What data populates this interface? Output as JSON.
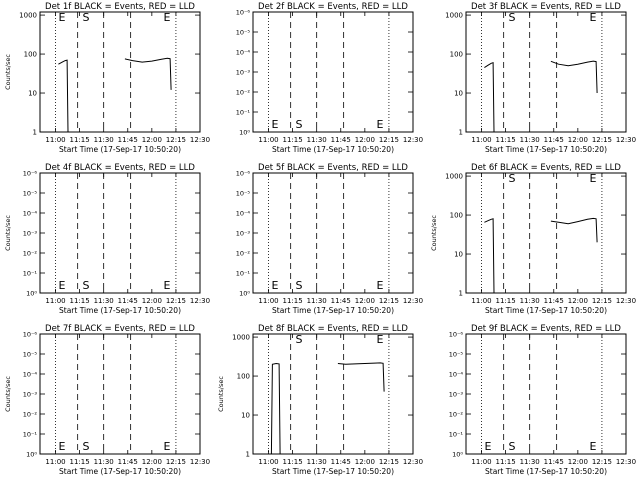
{
  "chart_data": [
    {
      "type": "line",
      "title": "Det 1f BLACK = Events, RED = LLD",
      "ylabel": "Counts/sec",
      "xlabel": "Start Time (17-Sep-17 10:50:20)",
      "x_ticks": [
        "11:00",
        "11:15",
        "11:30",
        "11:45",
        "12:00",
        "12:15",
        "12:30"
      ],
      "y_ticks": [
        "1",
        "10",
        "100",
        "1000"
      ],
      "ylog": true,
      "ylim": [
        1,
        1200
      ],
      "markers": [
        "E",
        "S",
        "E"
      ],
      "series": [
        {
          "values": [
            [
              11.03,
              55
            ],
            [
              11.07,
              62
            ],
            [
              11.1,
              68
            ],
            [
              11.12,
              70
            ],
            [
              11.13,
              1
            ]
          ]
        },
        {
          "values": [
            [
              11.72,
              75
            ],
            [
              11.8,
              68
            ],
            [
              11.9,
              62
            ],
            [
              12.0,
              66
            ],
            [
              12.1,
              74
            ],
            [
              12.16,
              78
            ],
            [
              12.19,
              76
            ],
            [
              12.2,
              12
            ]
          ]
        }
      ]
    },
    {
      "type": "line",
      "title": "Det 2f BLACK = Events, RED = LLD",
      "ylabel": "",
      "xlabel": "Start Time (17-Sep-17 10:50:20)",
      "x_ticks": [
        "11:00",
        "11:15",
        "11:30",
        "11:45",
        "12:00",
        "12:15",
        "12:30"
      ],
      "y_ticks": [
        "10⁰",
        "10⁻¹",
        "10⁻²",
        "10⁻³",
        "10⁻⁴",
        "10⁻⁵",
        "10⁻⁶"
      ],
      "ylog": false,
      "markers": [
        "E",
        "S",
        "E"
      ],
      "series": []
    },
    {
      "type": "line",
      "title": "Det 3f BLACK = Events, RED = LLD",
      "ylabel": "",
      "xlabel": "Start Time (17-Sep-17 10:50:20)",
      "x_ticks": [
        "11:00",
        "11:15",
        "11:30",
        "11:45",
        "12:00",
        "12:15",
        "12:30"
      ],
      "y_ticks": [
        "1",
        "10",
        "100",
        "1000"
      ],
      "ylog": true,
      "ylim": [
        1,
        1200
      ],
      "markers": [
        "S",
        "E"
      ],
      "series": [
        {
          "values": [
            [
              11.03,
              45
            ],
            [
              11.07,
              52
            ],
            [
              11.1,
              58
            ],
            [
              11.12,
              60
            ],
            [
              11.13,
              1
            ]
          ]
        },
        {
          "values": [
            [
              11.72,
              65
            ],
            [
              11.8,
              55
            ],
            [
              11.9,
              50
            ],
            [
              12.0,
              55
            ],
            [
              12.1,
              62
            ],
            [
              12.16,
              66
            ],
            [
              12.19,
              64
            ],
            [
              12.2,
              10
            ]
          ]
        }
      ]
    },
    {
      "type": "line",
      "title": "Det 4f BLACK = Events, RED = LLD",
      "ylabel": "Counts/sec",
      "xlabel": "Start Time (17-Sep-17 10:50:20)",
      "x_ticks": [
        "11:00",
        "11:15",
        "11:30",
        "11:45",
        "12:00",
        "12:15",
        "12:30"
      ],
      "y_ticks": [
        "10⁰",
        "10⁻¹",
        "10⁻²",
        "10⁻³",
        "10⁻⁴",
        "10⁻⁵",
        "10⁻⁶"
      ],
      "ylog": false,
      "markers": [
        "E",
        "S",
        "E"
      ],
      "series": []
    },
    {
      "type": "line",
      "title": "Det 5f BLACK = Events, RED = LLD",
      "ylabel": "",
      "xlabel": "Start Time (17-Sep-17 10:50:20)",
      "x_ticks": [
        "11:00",
        "11:15",
        "11:30",
        "11:45",
        "12:00",
        "12:15",
        "12:30"
      ],
      "y_ticks": [
        "10⁰",
        "10⁻¹",
        "10⁻²",
        "10⁻³",
        "10⁻⁴",
        "10⁻⁵",
        "10⁻⁶"
      ],
      "ylog": false,
      "markers": [
        "E",
        "S",
        "E"
      ],
      "series": []
    },
    {
      "type": "line",
      "title": "Det 6f BLACK = Events, RED = LLD",
      "ylabel": "Counts/sec",
      "xlabel": "Start Time (17-Sep-17 10:50:20)",
      "x_ticks": [
        "11:00",
        "11:15",
        "11:30",
        "11:45",
        "12:00",
        "12:15",
        "12:30"
      ],
      "y_ticks": [
        "1",
        "10",
        "100",
        "1000"
      ],
      "ylog": true,
      "ylim": [
        1,
        1200
      ],
      "markers": [
        "S",
        "E"
      ],
      "series": [
        {
          "values": [
            [
              11.03,
              65
            ],
            [
              11.07,
              72
            ],
            [
              11.1,
              78
            ],
            [
              11.12,
              80
            ],
            [
              11.13,
              1
            ]
          ]
        },
        {
          "values": [
            [
              11.72,
              70
            ],
            [
              11.8,
              65
            ],
            [
              11.9,
              60
            ],
            [
              12.0,
              68
            ],
            [
              12.1,
              78
            ],
            [
              12.16,
              82
            ],
            [
              12.19,
              80
            ],
            [
              12.2,
              20
            ]
          ]
        }
      ]
    },
    {
      "type": "line",
      "title": "Det 7f BLACK = Events, RED = LLD",
      "ylabel": "Counts/sec",
      "xlabel": "Start Time (17-Sep-17 10:50:20)",
      "x_ticks": [
        "11:00",
        "11:15",
        "11:30",
        "11:45",
        "12:00",
        "12:15",
        "12:30"
      ],
      "y_ticks": [
        "10⁰",
        "10⁻¹",
        "10⁻²",
        "10⁻³",
        "10⁻⁴",
        "10⁻⁵",
        "10⁻⁶"
      ],
      "ylog": false,
      "markers": [
        "E",
        "S",
        "E"
      ],
      "series": []
    },
    {
      "type": "line",
      "title": "Det 8f BLACK = Events, RED = LLD",
      "ylabel": "Counts/sec",
      "xlabel": "Start Time (17-Sep-17 10:50:20)",
      "x_ticks": [
        "11:00",
        "11:15",
        "11:30",
        "11:45",
        "12:00",
        "12:15",
        "12:30"
      ],
      "y_ticks": [
        "1",
        "10",
        "100",
        "1000"
      ],
      "ylog": true,
      "ylim": [
        1,
        1200
      ],
      "markers": [
        "S",
        "E"
      ],
      "series": [
        {
          "values": [
            [
              11.03,
              1
            ],
            [
              11.04,
              200
            ],
            [
              11.08,
              210
            ],
            [
              11.11,
              205
            ],
            [
              11.12,
              1
            ]
          ]
        },
        {
          "values": [
            [
              11.72,
              210
            ],
            [
              11.8,
              200
            ],
            [
              11.9,
              205
            ],
            [
              12.0,
              210
            ],
            [
              12.1,
              215
            ],
            [
              12.16,
              218
            ],
            [
              12.19,
              212
            ],
            [
              12.2,
              40
            ]
          ]
        }
      ]
    },
    {
      "type": "line",
      "title": "Det 9f BLACK = Events, RED = LLD",
      "ylabel": "",
      "xlabel": "Start Time (17-Sep-17 10:50:20)",
      "x_ticks": [
        "11:00",
        "11:15",
        "11:30",
        "11:45",
        "12:00",
        "12:15",
        "12:30"
      ],
      "y_ticks": [
        "10⁰",
        "10⁻¹",
        "10⁻²",
        "10⁻³",
        "10⁻⁴",
        "10⁻⁵",
        "10⁻⁶"
      ],
      "ylog": false,
      "markers": [
        "E",
        "S",
        "E"
      ],
      "series": []
    }
  ]
}
